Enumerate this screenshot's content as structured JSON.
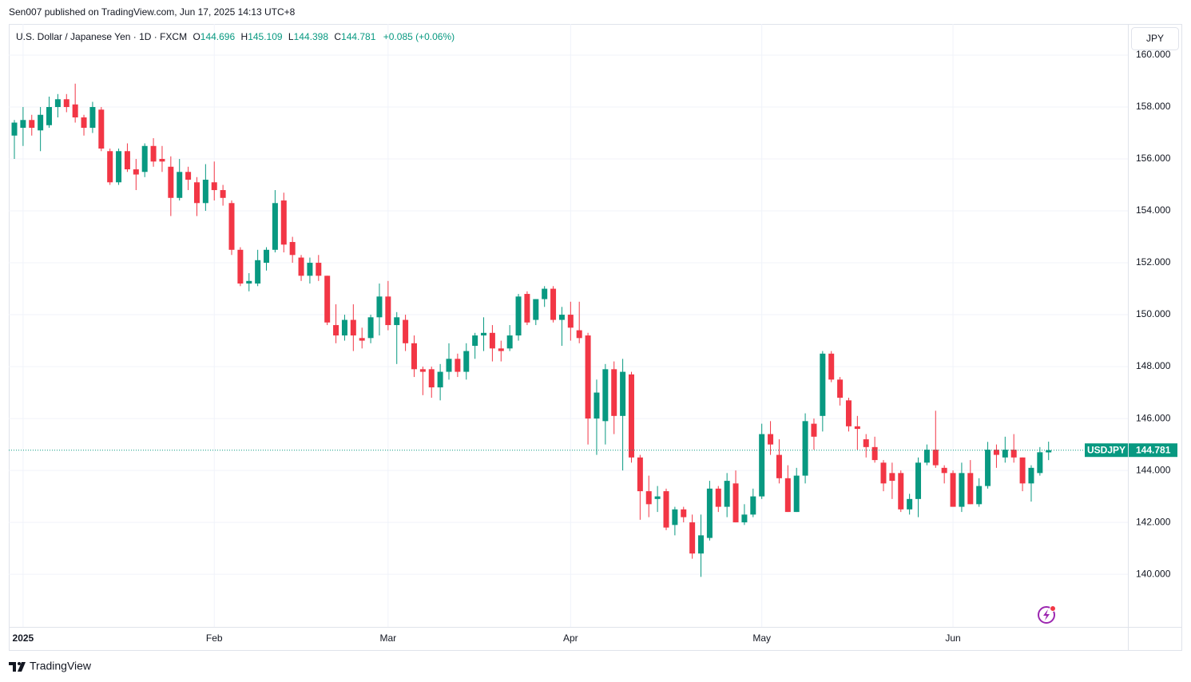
{
  "header": {
    "published": "Sen007 published on TradingView.com, Jun 17, 2025 14:13 UTC+8"
  },
  "footer": {
    "brand": "TradingView"
  },
  "chart_data": {
    "type": "candlestick",
    "title": "U.S. Dollar / Japanese Yen · 1D · FXCM",
    "symbol": "USDJPY",
    "currency": "JPY",
    "legend_labels": {
      "open": "O",
      "high": "H",
      "low": "L",
      "close": "C"
    },
    "change": "+0.085 (+0.06%)",
    "up_color": "#089981",
    "down_color": "#f23645",
    "grid": true,
    "categories": [
      null,
      "2025",
      null,
      null,
      null,
      null,
      null,
      null,
      null,
      null,
      null,
      null,
      null,
      null,
      null,
      null,
      null,
      null,
      null,
      null,
      null,
      null,
      null,
      "Feb",
      null,
      null,
      null,
      null,
      null,
      null,
      null,
      null,
      null,
      null,
      null,
      null,
      null,
      null,
      null,
      null,
      null,
      null,
      null,
      "Mar",
      null,
      null,
      null,
      null,
      null,
      null,
      null,
      null,
      null,
      null,
      null,
      null,
      null,
      null,
      null,
      null,
      null,
      null,
      null,
      null,
      "Apr",
      null,
      null,
      null,
      null,
      null,
      null,
      null,
      null,
      null,
      null,
      null,
      null,
      null,
      null,
      null,
      null,
      null,
      null,
      null,
      null,
      null,
      "May",
      null,
      null,
      null,
      null,
      null,
      null,
      null,
      null,
      null,
      null,
      null,
      null,
      null,
      null,
      null,
      null,
      null,
      null,
      null,
      null,
      null,
      "Jun",
      null,
      null,
      null,
      null,
      null,
      null,
      null,
      null,
      null,
      null,
      null
    ],
    "open": [
      156.9,
      157.2,
      157.5,
      157.1,
      157.3,
      158.0,
      158.3,
      158.1,
      157.6,
      157.2,
      157.9,
      156.3,
      155.1,
      156.3,
      155.6,
      155.5,
      156.5,
      156.0,
      155.7,
      154.5,
      155.5,
      155.1,
      154.3,
      155.1,
      154.8,
      154.3,
      152.5,
      151.2,
      151.2,
      152.0,
      152.5,
      154.4,
      152.8,
      152.2,
      151.5,
      152.0,
      151.5,
      149.6,
      149.2,
      149.8,
      149.1,
      149.1,
      149.9,
      150.7,
      149.6,
      149.8,
      148.9,
      147.9,
      147.9,
      147.2,
      147.8,
      148.3,
      147.8,
      148.8,
      149.2,
      149.3,
      148.7,
      148.7,
      149.2,
      150.8,
      149.8,
      150.6,
      151.0,
      149.8,
      150.0,
      149.4,
      149.2,
      146.0,
      145.9,
      147.9,
      146.1,
      147.7,
      144.5,
      143.2,
      142.9,
      143.2,
      141.9,
      142.5,
      142.0,
      140.8,
      141.4,
      143.3,
      142.6,
      143.5,
      142.0,
      142.3,
      143.0,
      145.4,
      144.6,
      143.7,
      142.4,
      143.8,
      145.8,
      146.1,
      148.5,
      147.5,
      146.7,
      145.7,
      145.2,
      144.9,
      144.3,
      143.9,
      143.9,
      142.5,
      142.9,
      144.3,
      144.8,
      144.1,
      143.9,
      142.6,
      143.9,
      142.7,
      143.4,
      144.8,
      144.5,
      144.8,
      144.5,
      143.5,
      143.9,
      144.696
    ],
    "high": [
      157.5,
      158.0,
      157.7,
      158.0,
      158.4,
      158.5,
      158.5,
      158.9,
      157.7,
      158.2,
      158.0,
      156.4,
      156.4,
      156.6,
      156.0,
      156.6,
      156.8,
      156.5,
      156.1,
      156.0,
      155.7,
      155.3,
      155.8,
      155.9,
      155.0,
      154.4,
      152.6,
      151.6,
      152.5,
      152.6,
      154.8,
      154.7,
      153.0,
      152.3,
      152.2,
      152.3,
      151.5,
      150.4,
      150.0,
      150.4,
      149.5,
      150.0,
      151.2,
      151.3,
      150.1,
      150.0,
      149.2,
      148.0,
      148.0,
      148.1,
      148.9,
      148.5,
      148.9,
      149.3,
      149.9,
      149.6,
      149.0,
      149.6,
      150.8,
      150.9,
      150.6,
      151.1,
      151.1,
      150.3,
      150.5,
      150.5,
      149.3,
      147.5,
      148.1,
      148.2,
      148.3,
      147.8,
      144.6,
      143.8,
      143.4,
      143.3,
      142.6,
      142.6,
      142.3,
      142.3,
      143.6,
      143.4,
      143.9,
      144.0,
      142.7,
      143.3,
      145.8,
      145.9,
      145.2,
      144.2,
      144.1,
      146.2,
      146.0,
      148.6,
      148.6,
      147.6,
      146.8,
      146.1,
      145.4,
      145.3,
      144.4,
      144.3,
      144.0,
      143.1,
      144.5,
      145.0,
      146.3,
      144.2,
      144.0,
      144.3,
      144.4,
      143.7,
      145.1,
      145.0,
      145.3,
      145.4,
      144.5,
      144.2,
      144.9,
      145.109
    ],
    "low": [
      156.0,
      156.5,
      156.9,
      156.3,
      157.2,
      157.6,
      157.8,
      157.4,
      156.9,
      157.0,
      156.3,
      155.0,
      155.0,
      155.5,
      154.8,
      155.3,
      155.7,
      155.5,
      153.8,
      154.4,
      154.8,
      153.8,
      154.0,
      154.4,
      154.2,
      152.3,
      151.1,
      150.9,
      151.1,
      151.7,
      152.4,
      152.4,
      152.0,
      151.3,
      151.2,
      151.3,
      149.6,
      148.9,
      149.0,
      148.6,
      148.7,
      148.9,
      149.2,
      149.4,
      148.1,
      148.6,
      147.6,
      146.9,
      146.8,
      146.7,
      147.5,
      147.6,
      147.5,
      148.3,
      148.6,
      148.2,
      148.2,
      148.6,
      149.0,
      149.6,
      149.6,
      150.3,
      149.7,
      148.8,
      149.0,
      148.9,
      145.0,
      144.6,
      145.0,
      145.4,
      144.0,
      144.3,
      142.1,
      142.2,
      142.4,
      141.7,
      141.5,
      142.0,
      140.6,
      139.9,
      141.3,
      142.4,
      142.2,
      142.0,
      141.9,
      142.2,
      142.9,
      144.6,
      143.5,
      142.4,
      142.4,
      143.5,
      144.8,
      145.5,
      147.4,
      146.5,
      145.5,
      144.8,
      144.5,
      144.3,
      143.2,
      142.9,
      142.4,
      142.3,
      142.2,
      144.2,
      144.1,
      143.5,
      142.6,
      142.4,
      142.7,
      142.6,
      143.3,
      144.1,
      144.3,
      144.3,
      143.2,
      142.8,
      143.8,
      144.398
    ],
    "close": [
      157.4,
      157.5,
      157.2,
      157.7,
      158.0,
      158.3,
      158.0,
      157.6,
      157.2,
      158.0,
      156.4,
      155.1,
      156.3,
      155.6,
      155.4,
      156.5,
      155.9,
      155.9,
      154.5,
      155.5,
      155.2,
      154.3,
      155.2,
      154.8,
      154.5,
      152.5,
      151.2,
      151.3,
      152.1,
      152.5,
      154.3,
      152.7,
      152.3,
      151.5,
      152.0,
      151.5,
      149.7,
      149.2,
      149.8,
      149.2,
      149.0,
      149.9,
      150.7,
      149.6,
      149.9,
      148.9,
      147.9,
      147.8,
      147.2,
      147.8,
      148.3,
      147.8,
      148.6,
      149.2,
      149.3,
      148.7,
      148.6,
      149.2,
      150.7,
      149.7,
      150.6,
      151.0,
      149.8,
      150.0,
      149.5,
      149.1,
      146.0,
      147.0,
      147.9,
      146.1,
      147.8,
      144.5,
      143.2,
      142.7,
      143.0,
      141.8,
      142.5,
      142.2,
      140.8,
      141.5,
      143.3,
      142.6,
      143.6,
      142.0,
      142.3,
      143.0,
      145.4,
      145.0,
      143.7,
      142.4,
      143.8,
      145.9,
      145.3,
      148.5,
      147.5,
      146.8,
      145.7,
      145.6,
      144.9,
      144.4,
      143.5,
      143.6,
      142.5,
      142.9,
      144.3,
      144.8,
      144.2,
      143.9,
      142.6,
      143.9,
      142.7,
      143.4,
      144.8,
      144.6,
      144.8,
      144.5,
      143.5,
      144.1,
      144.7,
      144.781
    ],
    "ylim": [
      137.05,
      161.2
    ],
    "yticks": [
      {
        "value": 140,
        "label": "140.000"
      },
      {
        "value": 142,
        "label": "142.000"
      },
      {
        "value": 144,
        "label": "144.000"
      },
      {
        "value": 146,
        "label": "146.000"
      },
      {
        "value": 148,
        "label": "148.000"
      },
      {
        "value": 150,
        "label": "150.000"
      },
      {
        "value": 152,
        "label": "152.000"
      },
      {
        "value": 154,
        "label": "154.000"
      },
      {
        "value": 156,
        "label": "156.000"
      },
      {
        "value": 158,
        "label": "158.000"
      },
      {
        "value": 160,
        "label": "160.000"
      }
    ]
  }
}
